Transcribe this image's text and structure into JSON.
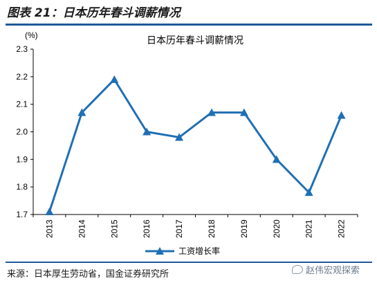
{
  "figure_title": "图表 21：日本历年春斗调薪情况",
  "source_text": "来源：日本厚生劳动省，国金证券研究所",
  "watermark_text": "赵伟宏观探索",
  "colors": {
    "line": "#1f6fb5",
    "rule": "#1f5a99"
  },
  "chart_data": {
    "type": "line",
    "title": "日本历年春斗调薪情况",
    "ylabel": "(%)",
    "xlabel": "",
    "categories": [
      "2013",
      "2014",
      "2015",
      "2016",
      "2017",
      "2018",
      "2019",
      "2020",
      "2021",
      "2022"
    ],
    "ylim": [
      1.7,
      2.3
    ],
    "yticks": [
      "1.7",
      "1.8",
      "1.9",
      "2.0",
      "2.1",
      "2.2",
      "2.3"
    ],
    "grid": false,
    "legend_position": "bottom",
    "series": [
      {
        "name": "工资增长率",
        "marker": "triangle",
        "values": [
          1.71,
          2.07,
          2.19,
          2.0,
          1.98,
          2.07,
          2.07,
          1.9,
          1.78,
          2.06
        ]
      }
    ]
  }
}
